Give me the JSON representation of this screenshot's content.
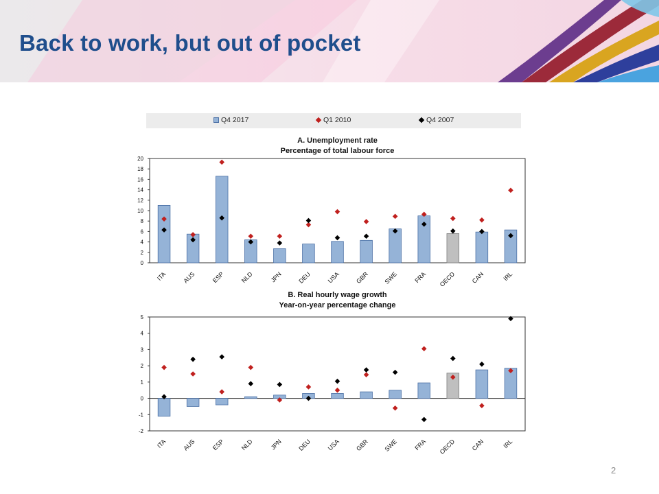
{
  "slide": {
    "title": "Back to work, but out of pocket",
    "page_number": "2"
  },
  "colors": {
    "title": "#1f4e8c",
    "bar": "#95b3d7",
    "bar_border": "#4a6fa5",
    "bar_oecd": "#bfbfbf",
    "q1_2010": "#c0201e",
    "q4_2007": "#000000",
    "legend_bg": "#ececec"
  },
  "legend": {
    "q4_2017": "Q4 2017",
    "q1_2010": "Q1 2010",
    "q4_2007": "Q4 2007"
  },
  "chart_data": [
    {
      "type": "bar",
      "title": "A. Unemployment rate",
      "subtitle": "Percentage of total labour force",
      "categories": [
        "ITA",
        "AUS",
        "ESP",
        "NLD",
        "JPN",
        "DEU",
        "USA",
        "GBR",
        "SWE",
        "FRA",
        "OECD",
        "CAN",
        "IRL"
      ],
      "ylim": [
        0,
        20
      ],
      "yticks": [
        0,
        2,
        4,
        6,
        8,
        10,
        12,
        14,
        16,
        18,
        20
      ],
      "legend_position": "top",
      "series": [
        {
          "name": "Q4 2017",
          "mark": "bar",
          "values": [
            11.0,
            5.5,
            16.6,
            4.4,
            2.7,
            3.6,
            4.1,
            4.3,
            6.5,
            9.0,
            5.6,
            5.9,
            6.3
          ]
        },
        {
          "name": "Q1 2010",
          "mark": "diamond",
          "values": [
            8.4,
            5.4,
            19.3,
            5.1,
            5.1,
            7.3,
            9.8,
            7.9,
            8.9,
            9.3,
            8.5,
            8.2,
            13.9
          ]
        },
        {
          "name": "Q4 2007",
          "mark": "diamond",
          "values": [
            6.3,
            4.4,
            8.6,
            4.0,
            3.8,
            8.1,
            4.8,
            5.1,
            6.1,
            7.4,
            6.1,
            6.0,
            5.2
          ]
        }
      ]
    },
    {
      "type": "bar",
      "title": "B. Real hourly wage growth",
      "subtitle": "Year-on-year percentage change",
      "categories": [
        "ITA",
        "AUS",
        "ESP",
        "NLD",
        "JPN",
        "DEU",
        "USA",
        "GBR",
        "SWE",
        "FRA",
        "OECD",
        "CAN",
        "IRL"
      ],
      "ylim": [
        -2,
        5
      ],
      "yticks": [
        -2,
        -1,
        0,
        1,
        2,
        3,
        4,
        5
      ],
      "series": [
        {
          "name": "Q4 2017",
          "mark": "bar",
          "values": [
            -1.1,
            -0.5,
            -0.4,
            0.1,
            0.2,
            0.3,
            0.3,
            0.4,
            0.5,
            0.95,
            1.55,
            1.75,
            1.85
          ]
        },
        {
          "name": "Q1 2010",
          "mark": "diamond",
          "values": [
            1.9,
            1.5,
            0.4,
            1.9,
            -0.1,
            0.7,
            0.5,
            1.45,
            -0.6,
            3.05,
            1.3,
            -0.45,
            1.7
          ]
        },
        {
          "name": "Q4 2007",
          "mark": "diamond",
          "values": [
            0.1,
            2.4,
            2.55,
            0.9,
            0.85,
            0.0,
            1.05,
            1.75,
            1.6,
            -1.3,
            2.45,
            2.1,
            4.9
          ]
        }
      ]
    }
  ]
}
